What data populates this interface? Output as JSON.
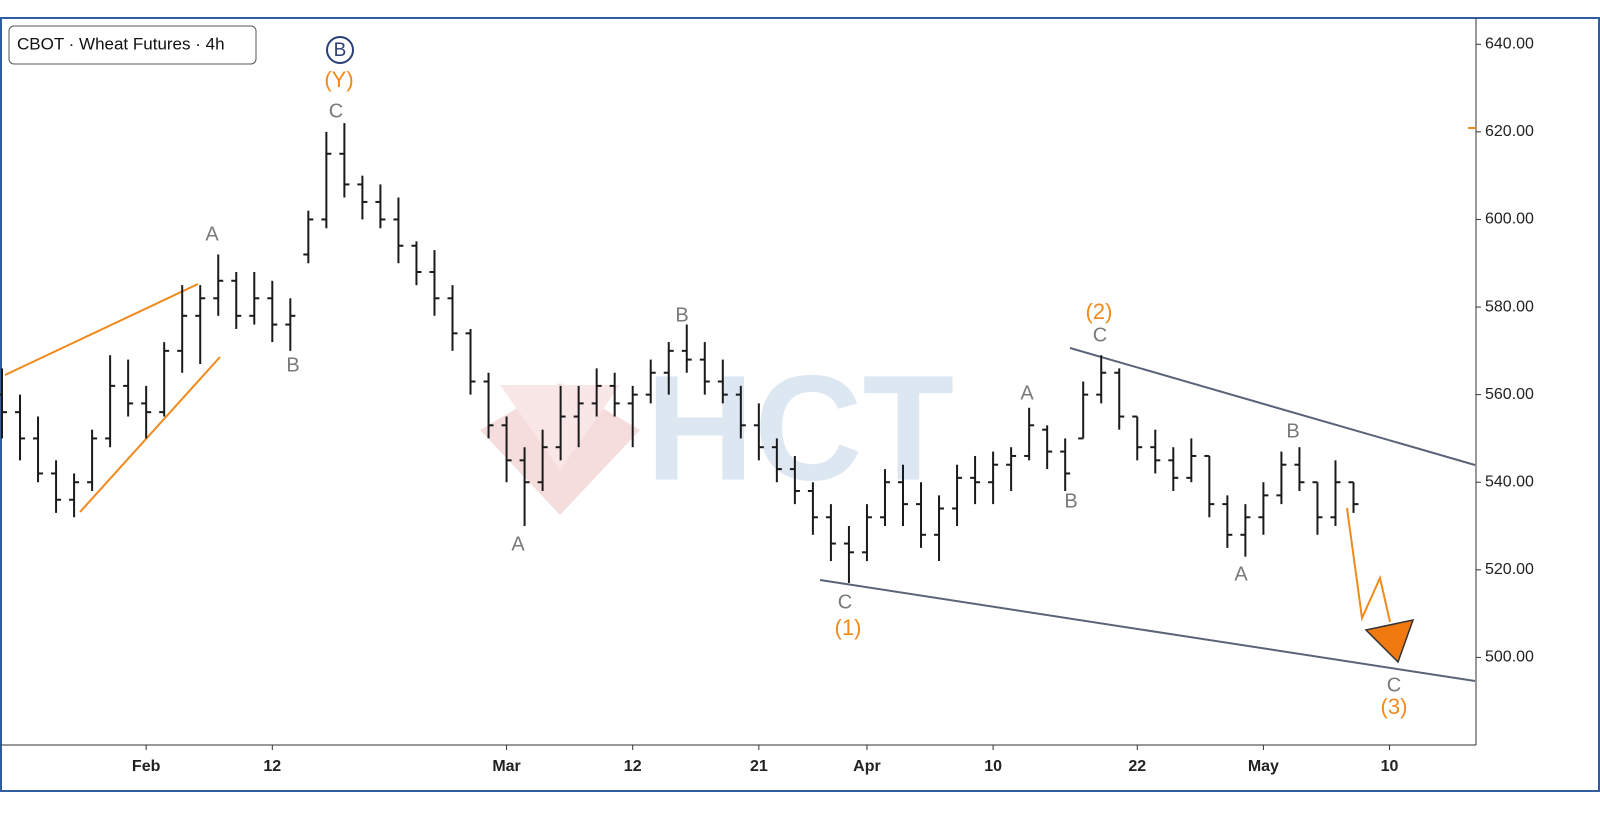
{
  "chart_data": {
    "type": "ohlc",
    "title": "CBOT · Wheat Futures · 4h",
    "watermark": "HCT",
    "x": [
      "Jan 22",
      "Jan 23",
      "Jan 24",
      "Jan 25",
      "Jan 26",
      "Jan 29",
      "Jan 30",
      "Jan 31",
      "Feb 1",
      "Feb 2",
      "Feb 5",
      "Feb 6",
      "Feb 7",
      "Feb 8",
      "Feb 9",
      "Feb 12",
      "Feb 13",
      "Feb 14",
      "Feb 15",
      "Feb 16",
      "Feb 20",
      "Feb 21",
      "Feb 22",
      "Feb 23",
      "Feb 26",
      "Feb 27",
      "Feb 28",
      "Feb 29",
      "Mar 1",
      "Mar 4",
      "Mar 5",
      "Mar 6",
      "Mar 7",
      "Mar 8",
      "Mar 11",
      "Mar 12",
      "Mar 13",
      "Mar 14",
      "Mar 15",
      "Mar 18",
      "Mar 19",
      "Mar 20",
      "Mar 21",
      "Mar 22",
      "Mar 25",
      "Mar 26",
      "Mar 27",
      "Mar 28",
      "Apr 1",
      "Apr 2",
      "Apr 3",
      "Apr 4",
      "Apr 5",
      "Apr 8",
      "Apr 9",
      "Apr 10",
      "Apr 11",
      "Apr 12",
      "Apr 15",
      "Apr 16",
      "Apr 17",
      "Apr 18",
      "Apr 19",
      "Apr 22",
      "Apr 23",
      "Apr 24",
      "Apr 25",
      "Apr 26",
      "Apr 29",
      "Apr 30",
      "May 1",
      "May 2",
      "May 3",
      "May 6",
      "May 7",
      "May 8",
      "May 9",
      "May 10",
      "May 13",
      "May 14",
      "May 15",
      "May 16"
    ],
    "open": [
      560,
      556,
      550,
      542,
      536,
      540,
      550,
      562,
      558,
      556,
      570,
      578,
      582,
      586,
      578,
      582,
      576,
      592,
      600,
      615,
      608,
      604,
      600,
      594,
      588,
      582,
      574,
      563,
      553,
      545,
      540,
      548,
      555,
      558,
      562,
      558,
      560,
      565,
      570,
      568,
      563,
      560,
      553,
      548,
      543,
      538,
      532,
      526,
      524,
      532,
      540,
      535,
      528,
      534,
      541,
      540,
      544,
      546,
      552,
      547,
      550,
      560,
      565,
      555,
      548,
      545,
      541,
      546,
      535,
      528,
      532,
      537,
      544,
      540,
      532,
      540,
      null,
      null,
      null,
      null,
      null,
      null
    ],
    "high": [
      566,
      560,
      555,
      545,
      542,
      552,
      569,
      568,
      562,
      572,
      585,
      585,
      592,
      588,
      588,
      586,
      582,
      602,
      620,
      622,
      610,
      608,
      605,
      595,
      593,
      585,
      575,
      565,
      555,
      548,
      552,
      562,
      562,
      566,
      565,
      562,
      568,
      572,
      576,
      572,
      568,
      562,
      558,
      550,
      546,
      540,
      535,
      530,
      535,
      543,
      544,
      540,
      537,
      544,
      546,
      547,
      548,
      557,
      553,
      550,
      563,
      569,
      566,
      555,
      552,
      548,
      550,
      546,
      537,
      535,
      540,
      547,
      548,
      540,
      545,
      540,
      null,
      null,
      null,
      null,
      null,
      null
    ],
    "low": [
      550,
      545,
      540,
      533,
      532,
      538,
      548,
      555,
      550,
      555,
      565,
      567,
      578,
      575,
      576,
      572,
      570,
      590,
      598,
      605,
      600,
      598,
      590,
      585,
      578,
      570,
      560,
      550,
      540,
      530,
      538,
      545,
      548,
      555,
      555,
      548,
      558,
      560,
      565,
      560,
      558,
      550,
      545,
      540,
      535,
      528,
      522,
      517,
      522,
      530,
      530,
      525,
      522,
      530,
      535,
      535,
      538,
      545,
      543,
      538,
      550,
      558,
      552,
      545,
      542,
      538,
      540,
      532,
      525,
      523,
      528,
      535,
      538,
      528,
      530,
      533,
      null,
      null,
      null,
      null,
      null,
      null
    ],
    "close": [
      556,
      550,
      542,
      536,
      540,
      550,
      562,
      558,
      556,
      570,
      578,
      582,
      586,
      578,
      582,
      576,
      578,
      600,
      615,
      608,
      604,
      600,
      594,
      588,
      582,
      574,
      563,
      553,
      545,
      540,
      548,
      555,
      558,
      562,
      558,
      560,
      565,
      570,
      568,
      563,
      560,
      553,
      548,
      543,
      538,
      532,
      526,
      524,
      532,
      540,
      535,
      528,
      534,
      541,
      540,
      544,
      546,
      553,
      547,
      542,
      560,
      565,
      555,
      548,
      545,
      541,
      546,
      535,
      528,
      532,
      537,
      544,
      540,
      532,
      540,
      535,
      null,
      null,
      null,
      null,
      null,
      null
    ],
    "color": "#1a1a1a",
    "ylim": [
      480,
      646
    ],
    "yticks": [
      {
        "value": 500,
        "label": "500.00"
      },
      {
        "value": 520,
        "label": "520.00"
      },
      {
        "value": 540,
        "label": "540.00"
      },
      {
        "value": 560,
        "label": "560.00"
      },
      {
        "value": 580,
        "label": "580.00"
      },
      {
        "value": 600,
        "label": "600.00"
      },
      {
        "value": 620,
        "label": "620.00"
      },
      {
        "value": 640,
        "label": "640.00"
      }
    ],
    "xticks": [
      {
        "value": "Feb 1",
        "label": "Feb"
      },
      {
        "value": "Feb 12",
        "label": "12"
      },
      {
        "value": "Mar 1",
        "label": "Mar"
      },
      {
        "value": "Mar 12",
        "label": "12"
      },
      {
        "value": "Mar 21",
        "label": "21"
      },
      {
        "value": "Apr 1",
        "label": "Apr"
      },
      {
        "value": "Apr 10",
        "label": "10"
      },
      {
        "value": "Apr 22",
        "label": "22"
      },
      {
        "value": "May 1",
        "label": "May"
      },
      {
        "value": "May 10",
        "label": "10"
      }
    ],
    "annotations": [
      "A",
      "B",
      "C",
      "(Y)",
      "B",
      "A",
      "B",
      "C",
      "(1)",
      "A",
      "B",
      "C",
      "(2)",
      "B",
      "A",
      "C",
      "(3)"
    ]
  }
}
